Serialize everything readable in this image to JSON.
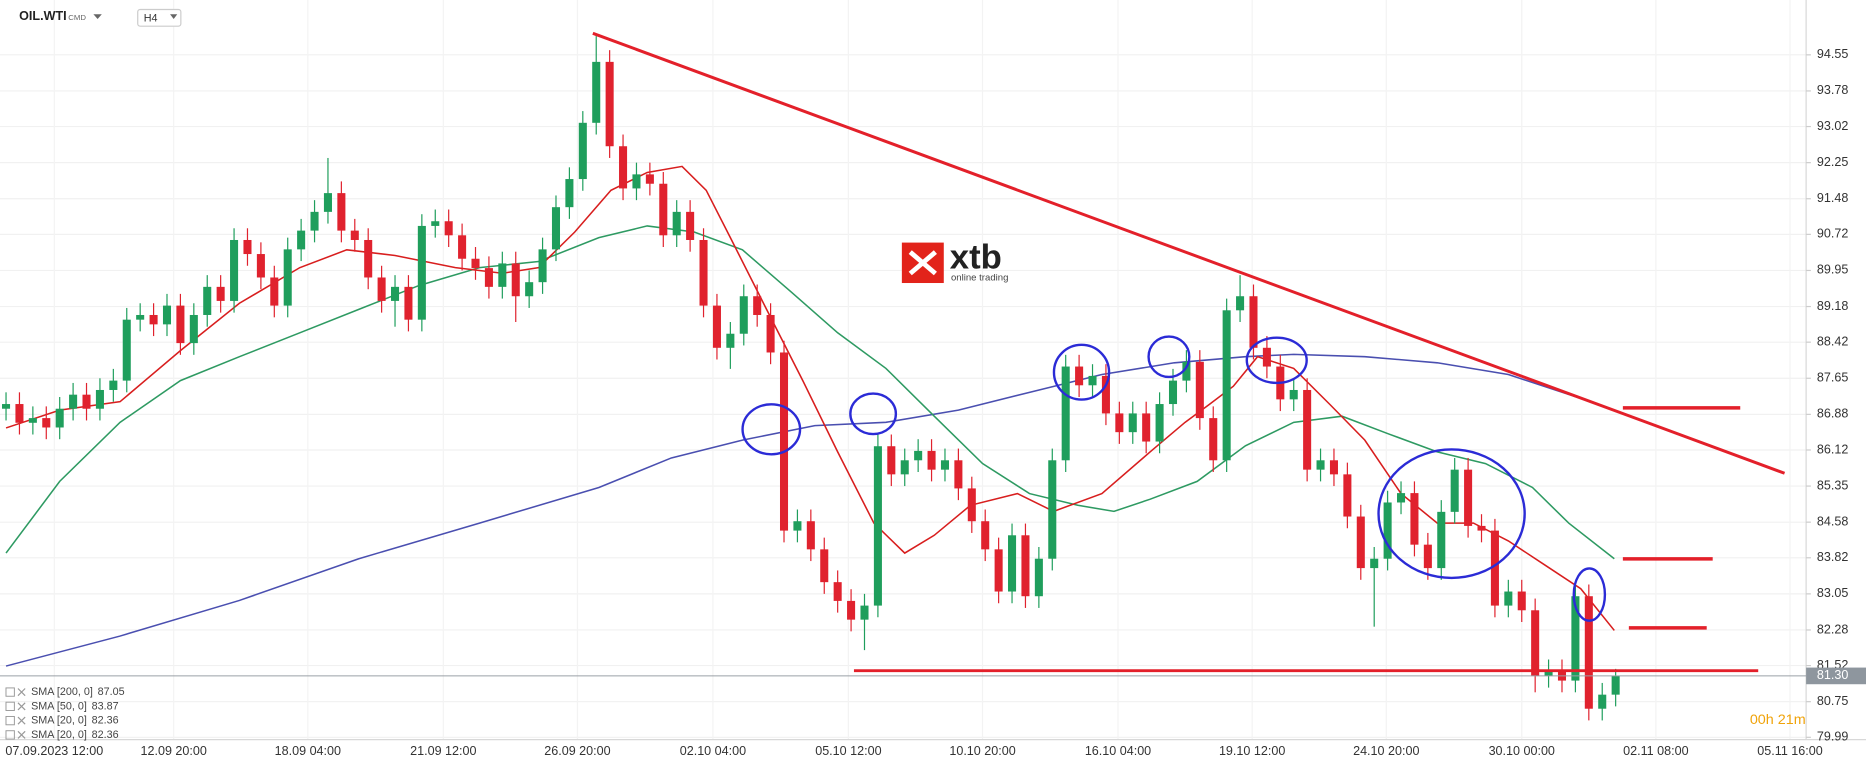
{
  "chart_data": {
    "type": "candlestick",
    "symbol": "OIL.WTI",
    "market": "CMD",
    "interval": "H4",
    "countdown": "00h 21m",
    "up_color": "#1f9e5c",
    "down_color": "#e0222e",
    "grid": true,
    "xlim": [
      -0.45,
      134.2
    ],
    "ylim": [
      79.94,
      95.72
    ],
    "yticks": [
      94.55,
      93.78,
      93.02,
      92.25,
      91.48,
      90.72,
      89.95,
      89.18,
      88.42,
      87.65,
      86.88,
      86.12,
      85.35,
      84.58,
      83.82,
      83.05,
      82.28,
      81.52,
      80.75,
      79.99
    ],
    "xticks": [
      {
        "value": 3.6,
        "label": "07.09.2023  12:00"
      },
      {
        "value": 12.5,
        "label": "12.09  20:00"
      },
      {
        "value": 22.5,
        "label": "18.09  04:00"
      },
      {
        "value": 32.6,
        "label": "21.09  12:00"
      },
      {
        "value": 42.6,
        "label": "26.09  20:00"
      },
      {
        "value": 52.7,
        "label": "02.10  04:00"
      },
      {
        "value": 62.8,
        "label": "05.10  12:00"
      },
      {
        "value": 72.8,
        "label": "10.10  20:00"
      },
      {
        "value": 82.9,
        "label": "16.10  04:00"
      },
      {
        "value": 92.9,
        "label": "19.10  12:00"
      },
      {
        "value": 102.9,
        "label": "24.10  20:00"
      },
      {
        "value": 113,
        "label": "30.10  00:00"
      },
      {
        "value": 123,
        "label": "02.11  08:00"
      },
      {
        "value": 133,
        "label": "05.11  16:00"
      }
    ],
    "last_price": {
      "value": 81.3,
      "label": "81.30"
    },
    "open": [
      87.0,
      87.1,
      86.7,
      86.8,
      86.6,
      87.0,
      87.3,
      87.0,
      87.4,
      87.6,
      88.9,
      89.0,
      88.8,
      89.2,
      88.4,
      89.0,
      89.6,
      89.3,
      90.6,
      90.3,
      89.8,
      89.2,
      90.4,
      90.8,
      91.2,
      91.6,
      90.8,
      90.6,
      89.8,
      89.3,
      89.6,
      88.9,
      90.9,
      91.0,
      90.7,
      90.2,
      90.0,
      89.6,
      90.1,
      89.4,
      89.7,
      90.4,
      91.3,
      91.9,
      93.1,
      94.4,
      92.6,
      91.7,
      92.0,
      91.8,
      90.7,
      91.2,
      90.6,
      89.2,
      88.3,
      88.6,
      89.4,
      89.0,
      88.2,
      84.4,
      84.6,
      84.0,
      83.3,
      82.9,
      82.5,
      82.8,
      86.2,
      85.6,
      85.9,
      86.1,
      85.7,
      85.9,
      85.3,
      84.6,
      84.0,
      83.1,
      84.3,
      83.0,
      83.8,
      85.9,
      87.9,
      87.5,
      87.7,
      86.9,
      86.5,
      86.9,
      86.3,
      87.1,
      87.6,
      88.0,
      86.8,
      85.9,
      89.1,
      89.4,
      88.3,
      87.9,
      87.2,
      87.4,
      85.7,
      85.9,
      85.6,
      84.7,
      83.6,
      83.8,
      85.0,
      85.2,
      84.1,
      83.6,
      84.8,
      85.7,
      84.5,
      84.4,
      82.8,
      83.1,
      82.7,
      81.3,
      81.4,
      81.2,
      83.0,
      80.6,
      80.9
    ],
    "high": [
      87.35,
      87.35,
      87.05,
      87.05,
      87.25,
      87.55,
      87.55,
      87.65,
      87.85,
      89.15,
      89.25,
      89.25,
      89.45,
      89.45,
      89.25,
      89.85,
      89.85,
      90.85,
      90.85,
      90.55,
      90.05,
      90.65,
      91.05,
      91.45,
      92.35,
      91.85,
      91.05,
      90.85,
      90.05,
      89.85,
      89.85,
      91.15,
      91.25,
      91.25,
      90.95,
      90.45,
      90.25,
      90.35,
      90.35,
      89.95,
      90.65,
      91.55,
      92.15,
      93.35,
      94.95,
      94.65,
      92.85,
      92.25,
      92.25,
      92.05,
      91.45,
      91.45,
      90.85,
      89.45,
      88.85,
      89.65,
      89.65,
      89.25,
      88.45,
      84.85,
      84.85,
      84.25,
      83.55,
      83.15,
      83.05,
      86.45,
      86.45,
      86.15,
      86.35,
      86.35,
      86.15,
      86.15,
      85.55,
      84.85,
      84.25,
      84.55,
      84.55,
      84.05,
      86.15,
      88.15,
      88.15,
      87.95,
      87.95,
      87.15,
      87.15,
      87.15,
      87.35,
      87.85,
      88.25,
      88.25,
      87.05,
      89.35,
      89.85,
      89.65,
      88.55,
      88.15,
      87.65,
      87.65,
      86.15,
      86.15,
      85.85,
      84.95,
      84.05,
      85.25,
      85.45,
      85.45,
      84.35,
      85.05,
      85.95,
      85.95,
      84.75,
      84.65,
      83.35,
      83.35,
      82.95,
      81.65,
      81.65,
      83.25,
      83.25,
      81.15,
      81.45
    ],
    "low": [
      86.75,
      86.45,
      86.45,
      86.35,
      86.35,
      86.75,
      86.75,
      86.75,
      87.15,
      87.35,
      88.65,
      88.55,
      88.55,
      88.15,
      88.15,
      88.75,
      89.05,
      89.05,
      90.05,
      89.55,
      88.95,
      88.95,
      90.15,
      90.55,
      90.95,
      90.55,
      90.35,
      89.55,
      89.05,
      88.75,
      88.65,
      88.65,
      90.65,
      90.45,
      89.95,
      89.75,
      89.35,
      89.35,
      88.85,
      89.15,
      89.45,
      90.15,
      91.05,
      91.65,
      92.85,
      92.35,
      91.45,
      91.45,
      91.55,
      90.45,
      90.45,
      90.35,
      88.95,
      88.05,
      87.85,
      88.35,
      88.75,
      87.95,
      84.15,
      84.15,
      83.75,
      83.05,
      82.65,
      82.25,
      81.85,
      82.55,
      85.35,
      85.35,
      85.65,
      85.45,
      85.45,
      85.05,
      84.35,
      83.75,
      82.85,
      82.85,
      82.75,
      82.75,
      83.55,
      85.65,
      87.25,
      87.25,
      86.65,
      86.25,
      86.25,
      86.05,
      86.05,
      86.85,
      87.35,
      86.55,
      85.65,
      85.65,
      88.85,
      88.05,
      87.65,
      86.95,
      86.95,
      85.45,
      85.45,
      85.35,
      84.45,
      83.35,
      82.35,
      83.55,
      84.75,
      83.85,
      83.35,
      83.35,
      84.55,
      84.25,
      84.15,
      82.55,
      82.55,
      82.45,
      80.95,
      81.05,
      80.95,
      80.95,
      80.35,
      80.35,
      80.65
    ],
    "close": [
      87.1,
      86.7,
      86.8,
      86.6,
      87.0,
      87.3,
      87.0,
      87.4,
      87.6,
      88.9,
      89.0,
      88.8,
      89.2,
      88.4,
      89.0,
      89.6,
      89.3,
      90.6,
      90.3,
      89.8,
      89.2,
      90.4,
      90.8,
      91.2,
      91.6,
      90.8,
      90.6,
      89.8,
      89.3,
      89.6,
      88.9,
      90.9,
      91.0,
      90.7,
      90.2,
      90.0,
      89.6,
      90.1,
      89.4,
      89.7,
      90.4,
      91.3,
      91.9,
      93.1,
      94.4,
      92.6,
      91.7,
      92.0,
      91.8,
      90.7,
      91.2,
      90.6,
      89.2,
      88.3,
      88.6,
      89.4,
      89.0,
      88.2,
      84.4,
      84.6,
      84.0,
      83.3,
      82.9,
      82.5,
      82.8,
      86.2,
      85.6,
      85.9,
      86.1,
      85.7,
      85.9,
      85.3,
      84.6,
      84.0,
      83.1,
      84.3,
      83.0,
      83.8,
      85.9,
      87.9,
      87.5,
      87.7,
      86.9,
      86.5,
      86.9,
      86.3,
      87.1,
      87.6,
      88.0,
      86.8,
      85.9,
      89.1,
      89.4,
      88.3,
      87.9,
      87.2,
      87.4,
      85.7,
      85.9,
      85.6,
      84.7,
      83.6,
      83.8,
      85.0,
      85.2,
      84.1,
      83.6,
      84.8,
      85.7,
      84.5,
      84.4,
      82.8,
      83.1,
      82.7,
      81.3,
      81.4,
      81.2,
      83.0,
      80.6,
      80.9,
      81.3
    ],
    "series": [
      {
        "name": "SMA [200, 0]",
        "last": 87.05,
        "color": "#4a4fb0",
        "x": [
          0,
          8.5,
          17.4,
          26.3,
          35.3,
          44.2,
          49.6,
          54.9,
          60.3,
          65.6,
          71,
          76.3,
          81.7,
          87.1,
          92.4,
          96,
          101.3,
          106.7,
          112,
          117.4,
          119.9
        ],
        "values": [
          81.51,
          82.15,
          82.91,
          83.8,
          84.56,
          85.32,
          85.95,
          86.33,
          86.64,
          86.71,
          86.97,
          87.35,
          87.73,
          87.98,
          88.11,
          88.16,
          88.11,
          87.98,
          87.73,
          87.22,
          86.97
        ]
      },
      {
        "name": "SMA [50, 0]",
        "last": 83.87,
        "color": "#2e9a62",
        "x": [
          0,
          4,
          8.5,
          13,
          17.4,
          21.9,
          26.3,
          30.8,
          35.3,
          39.7,
          44.2,
          47.8,
          51.3,
          54.9,
          58.5,
          62,
          65.6,
          69.2,
          72.8,
          76.3,
          79.9,
          82.6,
          85.3,
          88.8,
          92.4,
          96,
          99.6,
          103.1,
          106.7,
          110.3,
          113.8,
          116.5,
          119.9
        ],
        "values": [
          83.92,
          85.45,
          86.71,
          87.6,
          88.11,
          88.62,
          89.12,
          89.63,
          90.01,
          90.14,
          90.65,
          90.9,
          90.77,
          90.39,
          89.5,
          88.62,
          87.86,
          86.84,
          85.83,
          85.19,
          84.94,
          84.81,
          85.07,
          85.45,
          86.21,
          86.71,
          86.84,
          86.46,
          86.08,
          85.83,
          85.32,
          84.56,
          83.8
        ]
      },
      {
        "name": "SMA [20, 0]",
        "last": 82.36,
        "color": "#d81e1e",
        "x": [
          0,
          4,
          8.5,
          13,
          17.4,
          21.9,
          25.4,
          29,
          33.5,
          37,
          39.7,
          42.4,
          45.1,
          47.8,
          50.4,
          52.2,
          54,
          56.7,
          59.4,
          62,
          64.7,
          67,
          69.2,
          71.9,
          75.4,
          78.1,
          81.7,
          85.3,
          87.9,
          89.7,
          91.5,
          93.3,
          96,
          98.7,
          101.3,
          104,
          106.7,
          109.4,
          112,
          114.7,
          117.4,
          119.9
        ],
        "values": [
          86.59,
          86.97,
          87.15,
          88.24,
          89.25,
          90.01,
          90.39,
          90.27,
          90.01,
          89.89,
          90.01,
          90.77,
          91.66,
          92.04,
          92.17,
          91.66,
          90.65,
          89.12,
          87.6,
          86.08,
          84.56,
          83.92,
          84.3,
          84.94,
          85.19,
          84.81,
          85.19,
          86.08,
          86.71,
          87.09,
          87.48,
          88.11,
          87.86,
          87.09,
          86.33,
          85.19,
          84.56,
          84.56,
          84.18,
          83.67,
          83.16,
          82.27
        ]
      },
      {
        "name": "SMA [20, 0]",
        "last": 82.36,
        "color": "#d81e1e"
      }
    ]
  },
  "logo": {
    "name": "xtb",
    "tagline": "online trading"
  }
}
